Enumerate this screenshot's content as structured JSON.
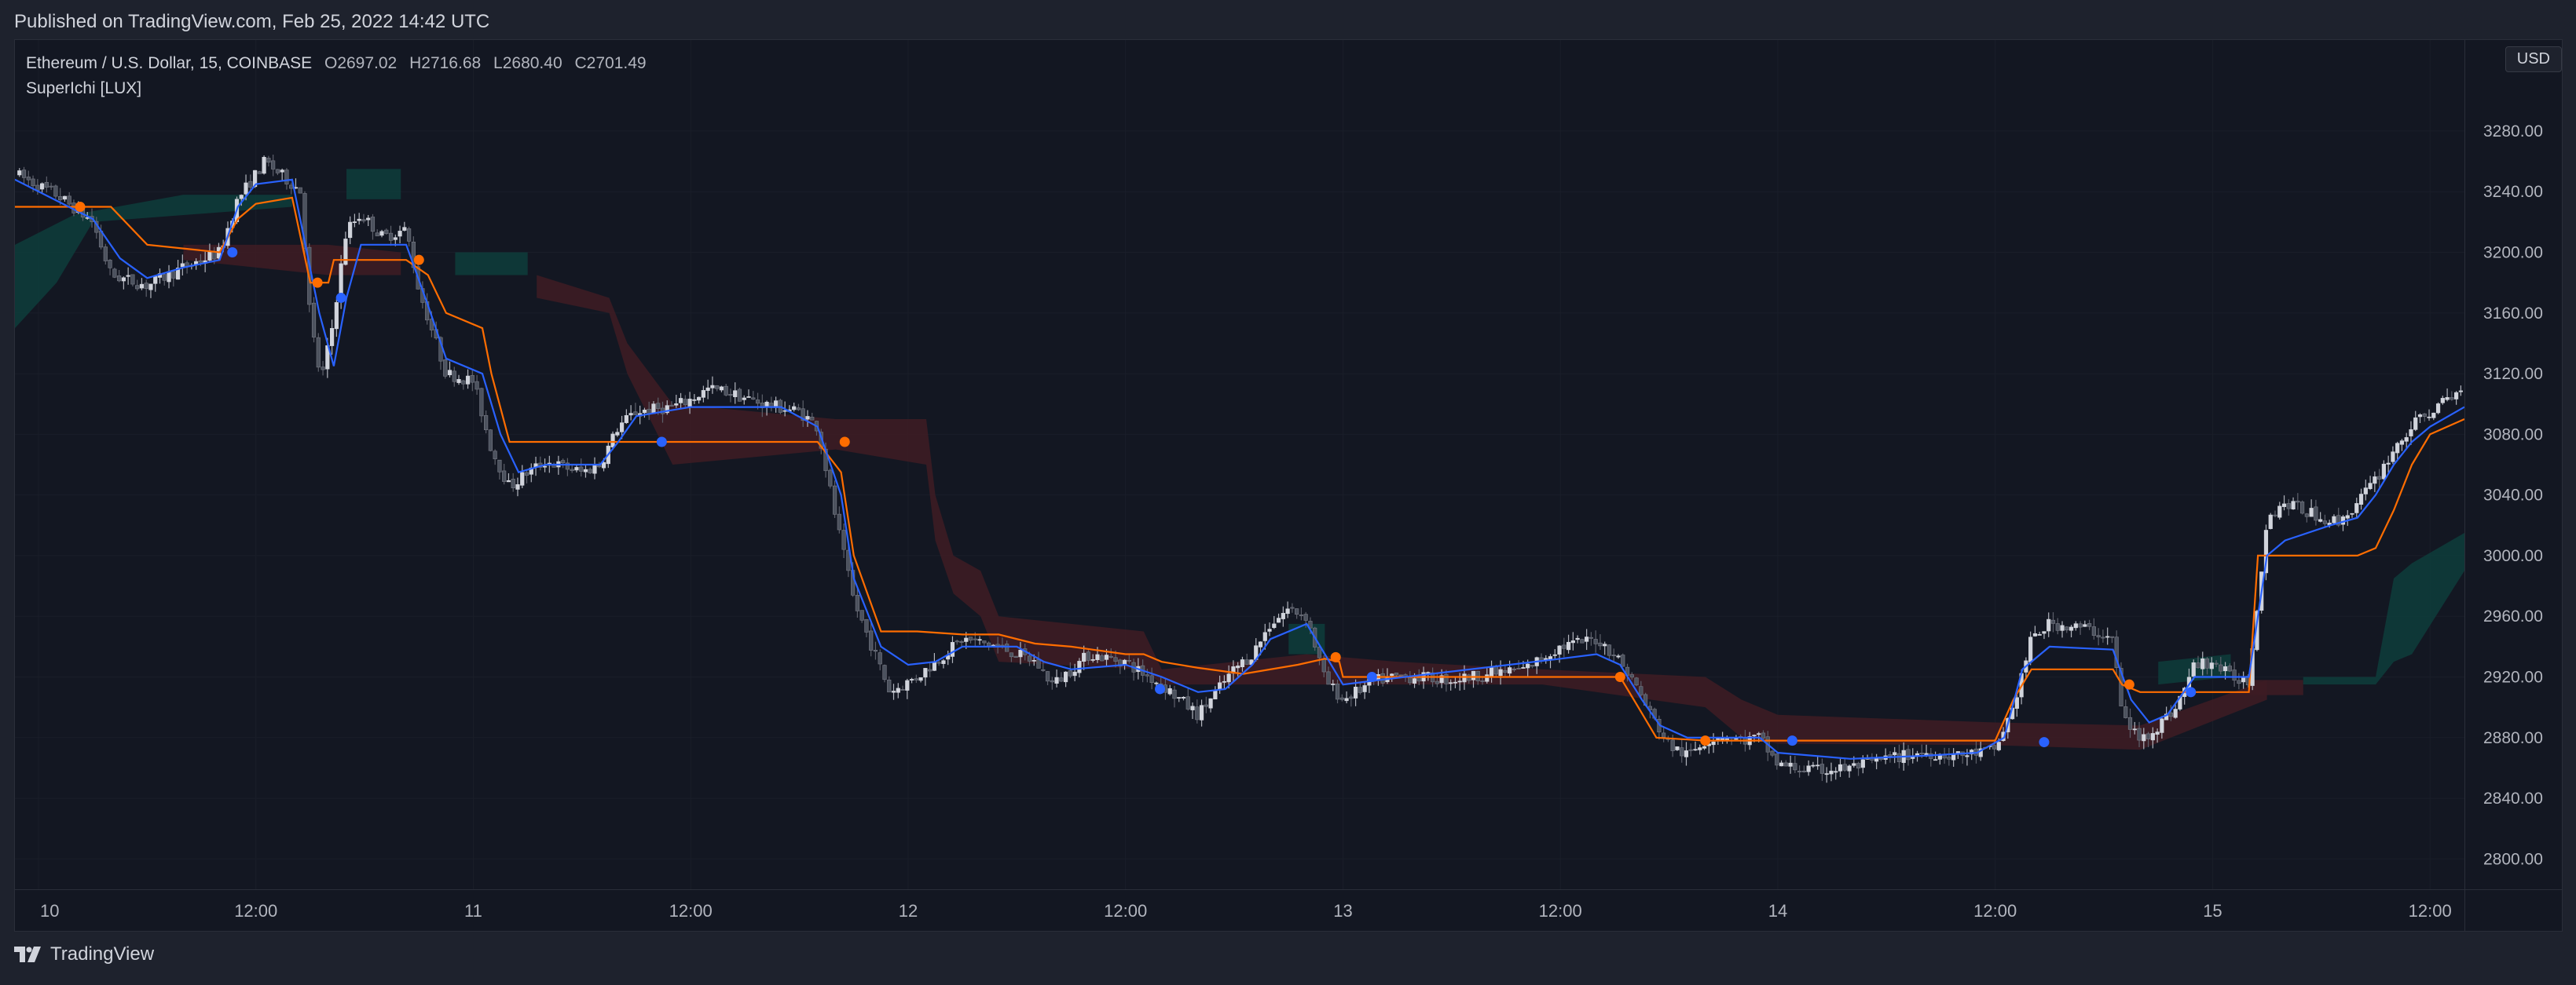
{
  "header": {
    "published": "Published on TradingView.com, Feb 25, 2022 14:42 UTC"
  },
  "legend": {
    "symbol": "Ethereum / U.S. Dollar, 15, COINBASE",
    "open_label": "O",
    "open": "2697.02",
    "high_label": "H",
    "high": "2716.68",
    "low_label": "L",
    "low": "2680.40",
    "close_label": "C",
    "close": "2701.49",
    "indicator": "SuperIchi [LUX]"
  },
  "currency": "USD",
  "footer": {
    "brand": "TradingView"
  },
  "colors": {
    "background": "#131722",
    "candle_up": "#d1d4dc",
    "candle_down": "#4c525e",
    "tenkan": "#2962ff",
    "kijun": "#ff6d00",
    "cloud_bull": "#0e3b3a",
    "cloud_bear": "#3d1c24"
  },
  "chart_data": {
    "type": "candlestick",
    "y_ticks": [
      "2800.00",
      "2840.00",
      "2880.00",
      "2920.00",
      "2960.00",
      "3000.00",
      "3040.00",
      "3080.00",
      "3120.00",
      "3160.00",
      "3200.00",
      "3240.00",
      "3280.00"
    ],
    "ylim": [
      2780,
      3340
    ],
    "x_ticks": [
      "10",
      "12:00",
      "11",
      "12:00",
      "12",
      "12:00",
      "13",
      "12:00",
      "14",
      "12:00",
      "15",
      "12:00"
    ],
    "x_tick_positions_hours": [
      0,
      12,
      24,
      36,
      48,
      60,
      72,
      84,
      96,
      108,
      120,
      132
    ],
    "xlim_hours": [
      -1.3,
      133.9
    ],
    "price_path": [
      [
        -1.3,
        3252
      ],
      [
        1,
        3238
      ],
      [
        3,
        3220
      ],
      [
        4,
        3185
      ],
      [
        6,
        3178
      ],
      [
        8,
        3190
      ],
      [
        10,
        3200
      ],
      [
        11,
        3235
      ],
      [
        12.5,
        3260
      ],
      [
        13.5,
        3250
      ],
      [
        14.5,
        3240
      ],
      [
        15,
        3155
      ],
      [
        15.6,
        3115
      ],
      [
        16.2,
        3150
      ],
      [
        17,
        3215
      ],
      [
        17.8,
        3225
      ],
      [
        19,
        3210
      ],
      [
        20.3,
        3215
      ],
      [
        21,
        3175
      ],
      [
        22.5,
        3120
      ],
      [
        24,
        3115
      ],
      [
        25,
        3070
      ],
      [
        26,
        3045
      ],
      [
        27,
        3055
      ],
      [
        28,
        3062
      ],
      [
        30,
        3055
      ],
      [
        31,
        3060
      ],
      [
        32,
        3085
      ],
      [
        33,
        3095
      ],
      [
        35,
        3098
      ],
      [
        36,
        3103
      ],
      [
        37,
        3110
      ],
      [
        38,
        3108
      ],
      [
        40,
        3100
      ],
      [
        42,
        3095
      ],
      [
        43,
        3085
      ],
      [
        44,
        3025
      ],
      [
        45,
        2970
      ],
      [
        47,
        2910
      ],
      [
        48.5,
        2920
      ],
      [
        50,
        2935
      ],
      [
        51,
        2945
      ],
      [
        53,
        2940
      ],
      [
        55,
        2930
      ],
      [
        56,
        2915
      ],
      [
        57,
        2925
      ],
      [
        58,
        2935
      ],
      [
        60,
        2930
      ],
      [
        61,
        2922
      ],
      [
        62,
        2915
      ],
      [
        63,
        2905
      ],
      [
        64,
        2895
      ],
      [
        65,
        2910
      ],
      [
        66,
        2925
      ],
      [
        67,
        2935
      ],
      [
        68,
        2955
      ],
      [
        69,
        2965
      ],
      [
        70,
        2960
      ],
      [
        71,
        2918
      ],
      [
        72,
        2905
      ],
      [
        73,
        2912
      ],
      [
        74,
        2918
      ],
      [
        75,
        2920
      ],
      [
        76,
        2920
      ],
      [
        78,
        2918
      ],
      [
        80,
        2922
      ],
      [
        82,
        2925
      ],
      [
        84,
        2940
      ],
      [
        86,
        2945
      ],
      [
        87,
        2935
      ],
      [
        88,
        2918
      ],
      [
        89,
        2895
      ],
      [
        90,
        2875
      ],
      [
        91,
        2868
      ],
      [
        92,
        2878
      ],
      [
        93,
        2882
      ],
      [
        94,
        2878
      ],
      [
        95,
        2880
      ],
      [
        96,
        2862
      ],
      [
        98,
        2858
      ],
      [
        100,
        2860
      ],
      [
        102,
        2866
      ],
      [
        104,
        2870
      ],
      [
        106,
        2868
      ],
      [
        108,
        2872
      ],
      [
        109,
        2900
      ],
      [
        110,
        2945
      ],
      [
        111,
        2955
      ],
      [
        113,
        2952
      ],
      [
        114.5,
        2945
      ],
      [
        115,
        2895
      ],
      [
        116,
        2878
      ],
      [
        117,
        2888
      ],
      [
        118,
        2900
      ],
      [
        119,
        2928
      ],
      [
        120,
        2930
      ],
      [
        121,
        2920
      ],
      [
        122,
        2918
      ],
      [
        123,
        3025
      ],
      [
        124,
        3035
      ],
      [
        126,
        3025
      ],
      [
        127,
        3022
      ],
      [
        128,
        3035
      ],
      [
        129,
        3050
      ],
      [
        130,
        3070
      ],
      [
        131,
        3085
      ],
      [
        132,
        3095
      ],
      [
        133.9,
        3110
      ]
    ],
    "tenkan": [
      [
        -1.3,
        3248
      ],
      [
        3,
        3222
      ],
      [
        4.5,
        3196
      ],
      [
        6,
        3183
      ],
      [
        8,
        3190
      ],
      [
        10,
        3195
      ],
      [
        11,
        3230
      ],
      [
        12,
        3245
      ],
      [
        14,
        3248
      ],
      [
        15.5,
        3160
      ],
      [
        16.3,
        3125
      ],
      [
        17,
        3170
      ],
      [
        17.8,
        3205
      ],
      [
        20.3,
        3205
      ],
      [
        21.5,
        3165
      ],
      [
        22.5,
        3130
      ],
      [
        24.5,
        3120
      ],
      [
        25.5,
        3080
      ],
      [
        26.5,
        3055
      ],
      [
        28,
        3060
      ],
      [
        31,
        3060
      ],
      [
        32,
        3075
      ],
      [
        33,
        3092
      ],
      [
        36,
        3098
      ],
      [
        41,
        3098
      ],
      [
        43,
        3085
      ],
      [
        44.3,
        3040
      ],
      [
        45,
        2985
      ],
      [
        46.5,
        2940
      ],
      [
        48,
        2928
      ],
      [
        49.5,
        2930
      ],
      [
        51,
        2940
      ],
      [
        54,
        2940
      ],
      [
        55.5,
        2930
      ],
      [
        57,
        2925
      ],
      [
        60,
        2928
      ],
      [
        62,
        2920
      ],
      [
        64,
        2910
      ],
      [
        65.5,
        2912
      ],
      [
        67,
        2928
      ],
      [
        68,
        2945
      ],
      [
        70,
        2955
      ],
      [
        71,
        2935
      ],
      [
        72,
        2915
      ],
      [
        74,
        2918
      ],
      [
        84,
        2932
      ],
      [
        86,
        2935
      ],
      [
        87.3,
        2928
      ],
      [
        88.5,
        2905
      ],
      [
        89.5,
        2888
      ],
      [
        91,
        2880
      ],
      [
        95,
        2880
      ],
      [
        96,
        2870
      ],
      [
        100,
        2866
      ],
      [
        104,
        2868
      ],
      [
        107,
        2870
      ],
      [
        108.5,
        2880
      ],
      [
        109.5,
        2925
      ],
      [
        111,
        2940
      ],
      [
        114.5,
        2938
      ],
      [
        115.5,
        2905
      ],
      [
        116.5,
        2890
      ],
      [
        117.5,
        2895
      ],
      [
        119,
        2920
      ],
      [
        122,
        2920
      ],
      [
        123,
        3000
      ],
      [
        124,
        3010
      ],
      [
        126.5,
        3020
      ],
      [
        128,
        3025
      ],
      [
        129,
        3040
      ],
      [
        130,
        3060
      ],
      [
        131,
        3075
      ],
      [
        132,
        3085
      ],
      [
        133.9,
        3098
      ]
    ],
    "kijun": [
      [
        -1.3,
        3230
      ],
      [
        4,
        3230
      ],
      [
        6,
        3205
      ],
      [
        10,
        3200
      ],
      [
        11,
        3222
      ],
      [
        12,
        3232
      ],
      [
        14,
        3236
      ],
      [
        15,
        3180
      ],
      [
        16,
        3180
      ],
      [
        16.3,
        3195
      ],
      [
        20.3,
        3195
      ],
      [
        21.5,
        3185
      ],
      [
        22.5,
        3160
      ],
      [
        24.5,
        3150
      ],
      [
        25,
        3120
      ],
      [
        26,
        3075
      ],
      [
        43,
        3075
      ],
      [
        44.3,
        3055
      ],
      [
        45,
        3000
      ],
      [
        46.5,
        2950
      ],
      [
        48.5,
        2950
      ],
      [
        51,
        2948
      ],
      [
        53,
        2948
      ],
      [
        55,
        2942
      ],
      [
        57,
        2940
      ],
      [
        60,
        2935
      ],
      [
        61,
        2935
      ],
      [
        62,
        2930
      ],
      [
        64,
        2926
      ],
      [
        66.5,
        2922
      ],
      [
        69.5,
        2928
      ],
      [
        71,
        2932
      ],
      [
        71.8,
        2930
      ],
      [
        72,
        2920
      ],
      [
        87.3,
        2920
      ],
      [
        88.3,
        2900
      ],
      [
        89.3,
        2880
      ],
      [
        92,
        2878
      ],
      [
        96,
        2878
      ],
      [
        108,
        2878
      ],
      [
        109,
        2905
      ],
      [
        110,
        2925
      ],
      [
        114.5,
        2925
      ],
      [
        115,
        2915
      ],
      [
        116,
        2910
      ],
      [
        122,
        2910
      ],
      [
        122.5,
        3000
      ],
      [
        128,
        3000
      ],
      [
        129,
        3005
      ],
      [
        130,
        3030
      ],
      [
        131,
        3060
      ],
      [
        132,
        3080
      ],
      [
        133.9,
        3090
      ]
    ],
    "kijun_markers": [
      [
        2.3,
        3230
      ],
      [
        15.4,
        3180
      ],
      [
        21,
        3195
      ],
      [
        44.5,
        3075
      ],
      [
        71.6,
        2933
      ],
      [
        87.3,
        2920
      ],
      [
        92,
        2878
      ],
      [
        115.4,
        2915
      ]
    ],
    "tenkan_markers": [
      [
        10.7,
        3200
      ],
      [
        16.7,
        3170
      ],
      [
        34.4,
        3075
      ],
      [
        61.9,
        2912
      ],
      [
        73.6,
        2920
      ],
      [
        96.8,
        2878
      ],
      [
        110.7,
        2877
      ],
      [
        118.8,
        2910
      ]
    ],
    "cloud_segments": [
      {
        "sentiment": "bull",
        "top": [
          [
            -1.3,
            3205
          ],
          [
            2,
            3225
          ],
          [
            8,
            3238
          ],
          [
            14,
            3238
          ]
        ],
        "bottom": [
          [
            -1.3,
            3150
          ],
          [
            1,
            3180
          ],
          [
            3,
            3220
          ],
          [
            14,
            3230
          ]
        ]
      },
      {
        "sentiment": "bull",
        "top": [
          [
            17,
            3255
          ],
          [
            20,
            3255
          ]
        ],
        "bottom": [
          [
            17,
            3235
          ],
          [
            20,
            3235
          ]
        ]
      },
      {
        "sentiment": "bear",
        "top": [
          [
            8,
            3205
          ],
          [
            16,
            3205
          ],
          [
            20,
            3200
          ]
        ],
        "bottom": [
          [
            8,
            3195
          ],
          [
            16,
            3185
          ],
          [
            20,
            3185
          ]
        ]
      },
      {
        "sentiment": "bull",
        "top": [
          [
            23,
            3200
          ],
          [
            27,
            3200
          ]
        ],
        "bottom": [
          [
            23,
            3185
          ],
          [
            27,
            3185
          ]
        ]
      },
      {
        "sentiment": "bear",
        "top": [
          [
            27.5,
            3185
          ],
          [
            31.5,
            3170
          ],
          [
            32.5,
            3140
          ],
          [
            35,
            3100
          ],
          [
            44,
            3090
          ],
          [
            49,
            3090
          ],
          [
            49.5,
            3040
          ],
          [
            50.5,
            3000
          ],
          [
            52,
            2990
          ],
          [
            53,
            2960
          ],
          [
            61,
            2950
          ],
          [
            62,
            2925
          ],
          [
            70,
            2935
          ],
          [
            75,
            2930
          ],
          [
            83,
            2925
          ],
          [
            92,
            2920
          ],
          [
            94,
            2905
          ],
          [
            96,
            2895
          ],
          [
            108,
            2890
          ],
          [
            116,
            2888
          ],
          [
            123,
            2918
          ]
        ],
        "bottom": [
          [
            27.5,
            3170
          ],
          [
            31.5,
            3160
          ],
          [
            32.5,
            3120
          ],
          [
            35,
            3060
          ],
          [
            44,
            3070
          ],
          [
            49,
            3060
          ],
          [
            49.5,
            3010
          ],
          [
            50.5,
            2975
          ],
          [
            52,
            2960
          ],
          [
            53,
            2930
          ],
          [
            61,
            2925
          ],
          [
            62,
            2915
          ],
          [
            70,
            2915
          ],
          [
            75,
            2915
          ],
          [
            83,
            2915
          ],
          [
            92,
            2900
          ],
          [
            94,
            2880
          ],
          [
            96,
            2876
          ],
          [
            108,
            2875
          ],
          [
            116,
            2872
          ],
          [
            123,
            2905
          ]
        ]
      },
      {
        "sentiment": "bull",
        "top": [
          [
            69,
            2955
          ],
          [
            71,
            2955
          ]
        ],
        "bottom": [
          [
            69,
            2935
          ],
          [
            71,
            2935
          ]
        ]
      },
      {
        "sentiment": "bull",
        "top": [
          [
            117,
            2930
          ],
          [
            121,
            2935
          ]
        ],
        "bottom": [
          [
            117,
            2915
          ],
          [
            121,
            2920
          ]
        ]
      },
      {
        "sentiment": "bear",
        "top": [
          [
            122,
            2918
          ],
          [
            125,
            2918
          ]
        ],
        "bottom": [
          [
            122,
            2908
          ],
          [
            125,
            2908
          ]
        ]
      },
      {
        "sentiment": "bull",
        "top": [
          [
            125,
            2920
          ],
          [
            129,
            2920
          ],
          [
            130,
            2985
          ],
          [
            131,
            2995
          ],
          [
            133.9,
            3015
          ]
        ],
        "bottom": [
          [
            125,
            2915
          ],
          [
            129,
            2915
          ],
          [
            130,
            2930
          ],
          [
            131,
            2935
          ],
          [
            133.9,
            2990
          ]
        ]
      }
    ]
  }
}
